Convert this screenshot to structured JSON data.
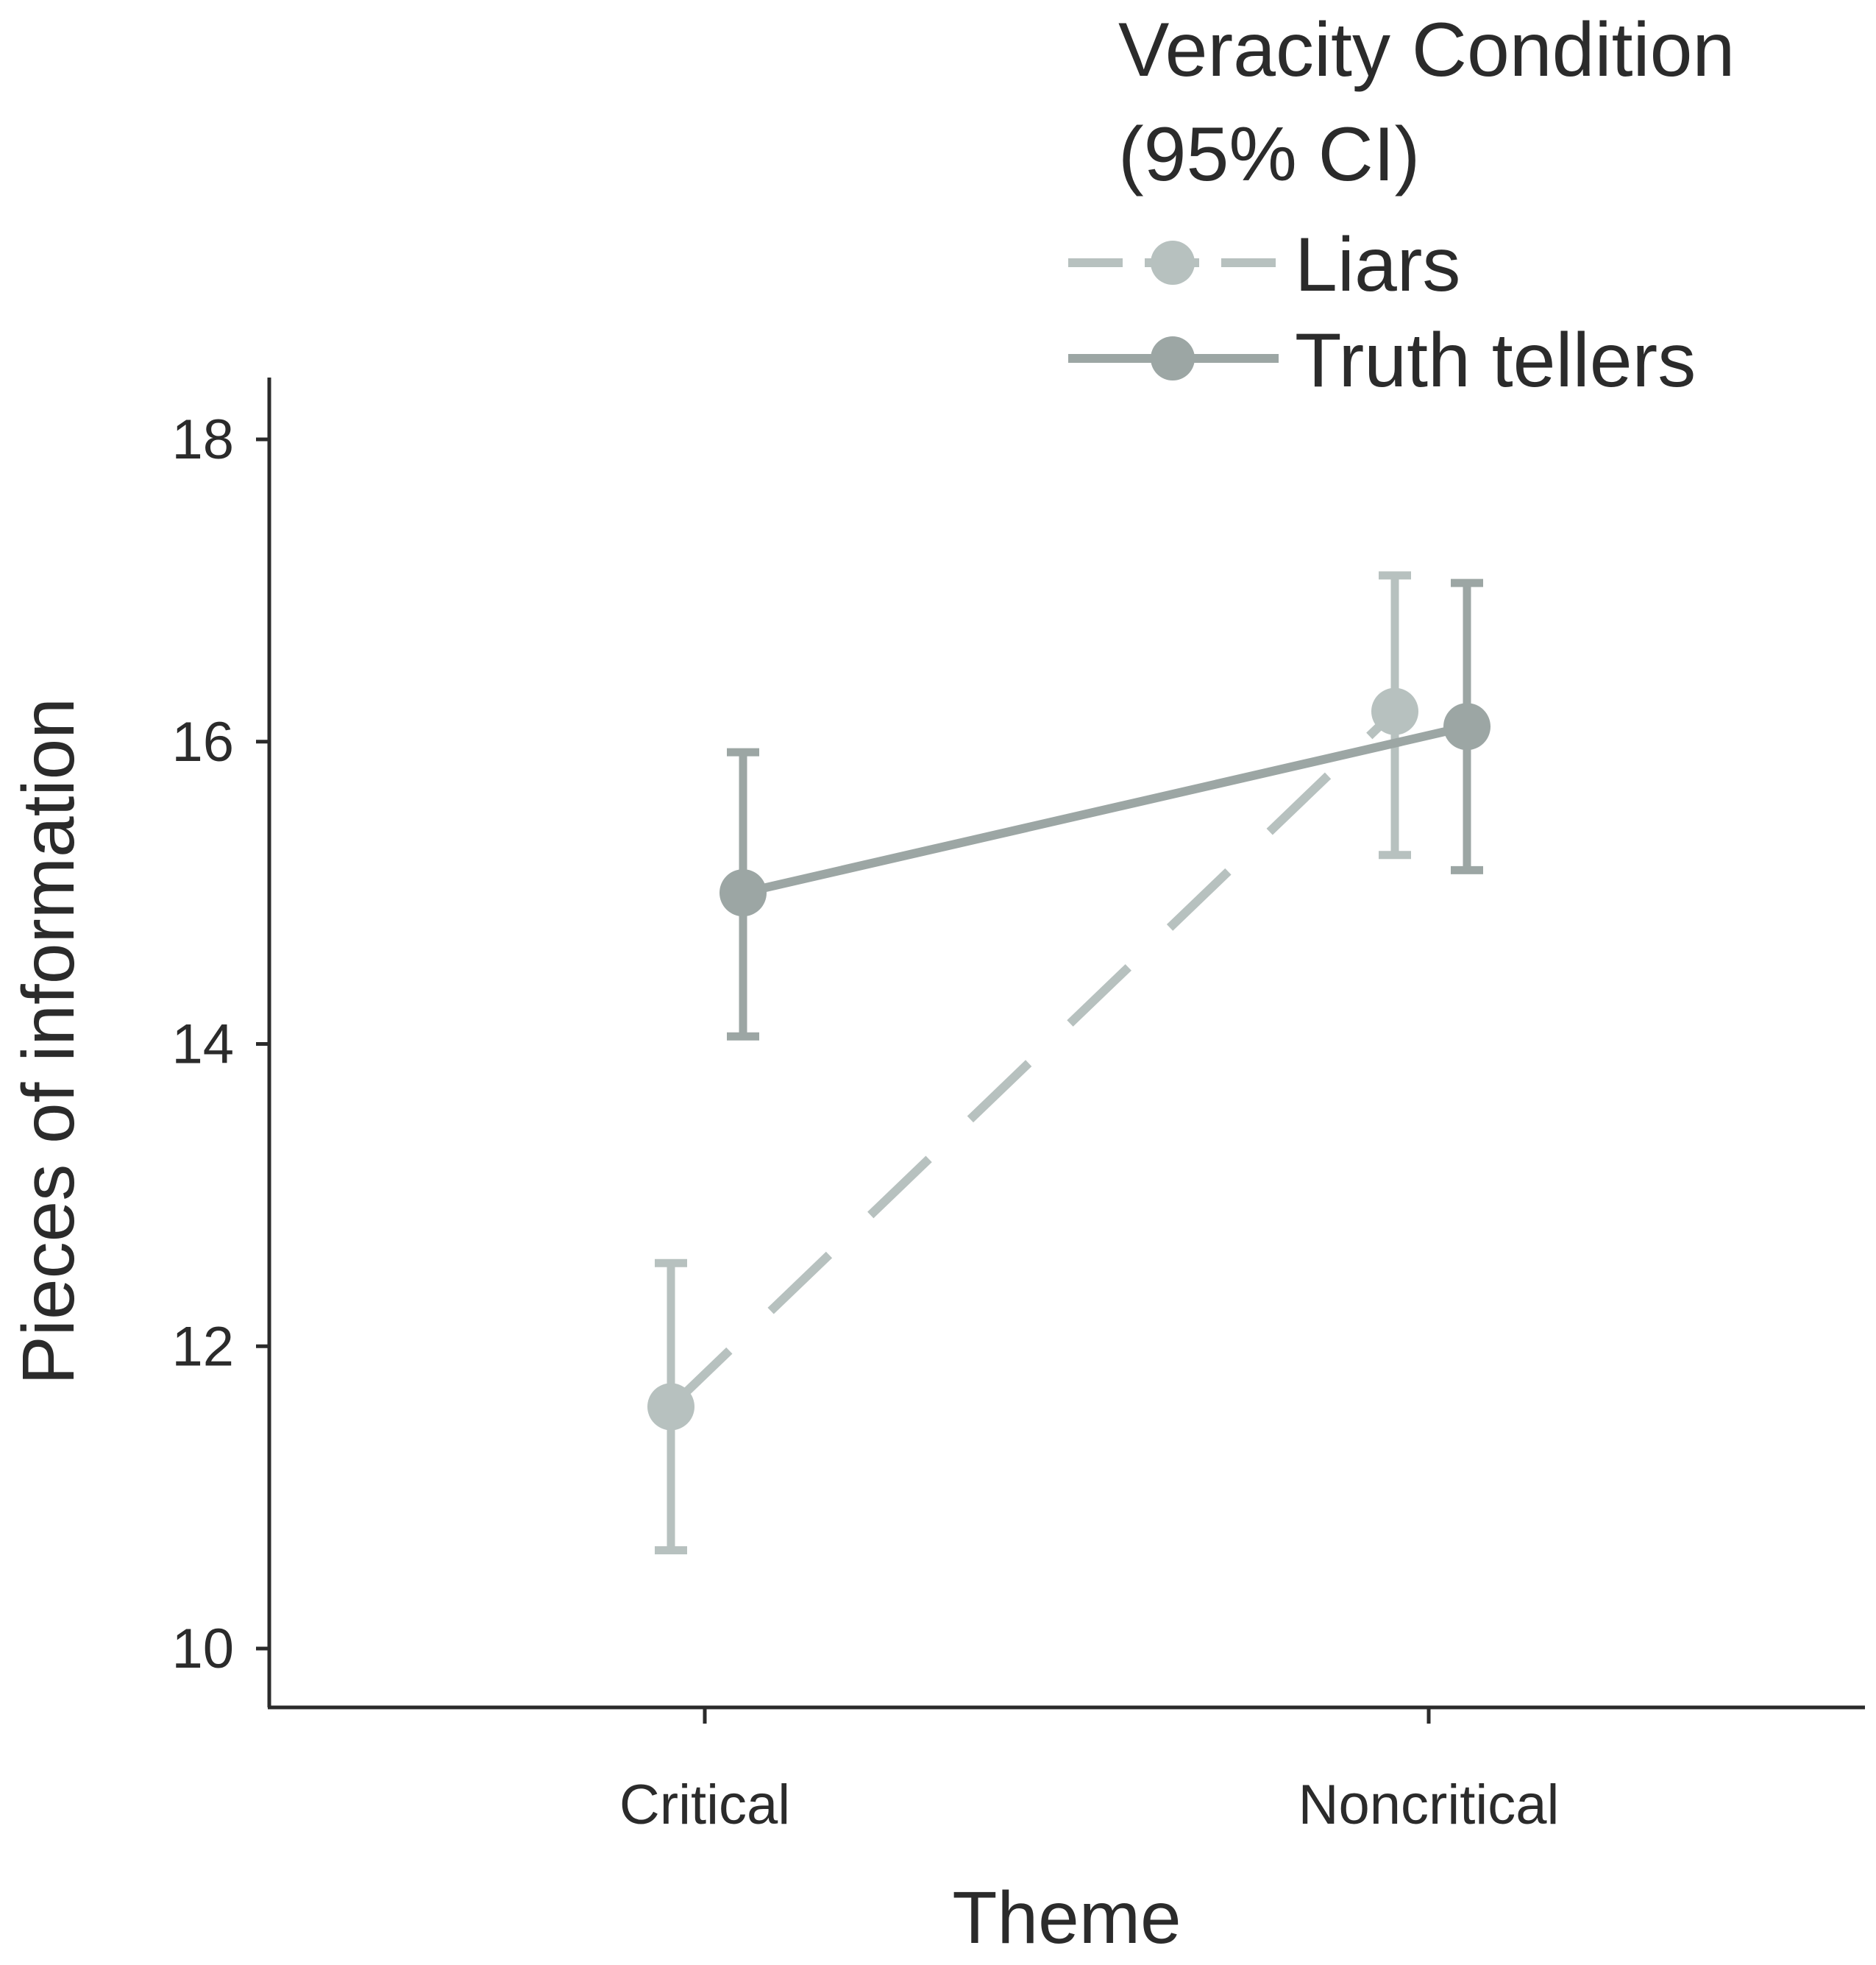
{
  "chart_data": {
    "type": "line",
    "title": "",
    "xlabel": "Theme",
    "ylabel": "Pieces of information",
    "categories": [
      "Critical",
      "Noncritical"
    ],
    "ylim": [
      10,
      18
    ],
    "yticks": [
      10,
      12,
      14,
      16,
      18
    ],
    "grid": false,
    "legend": {
      "title_line1": "Veracity Condition",
      "title_line2": "(95% CI)",
      "placement": "top-right"
    },
    "series": [
      {
        "name": "Liars",
        "values": [
          11.6,
          16.2
        ],
        "ci_lower": [
          10.65,
          15.25
        ],
        "ci_upper": [
          12.55,
          17.1
        ],
        "color": "#b7c1bf",
        "line_style": "dashed"
      },
      {
        "name": "Truth tellers",
        "values": [
          15.0,
          16.1
        ],
        "ci_lower": [
          14.05,
          15.15
        ],
        "ci_upper": [
          15.93,
          17.05
        ],
        "color": "#9ca6a4",
        "line_style": "solid"
      }
    ]
  }
}
